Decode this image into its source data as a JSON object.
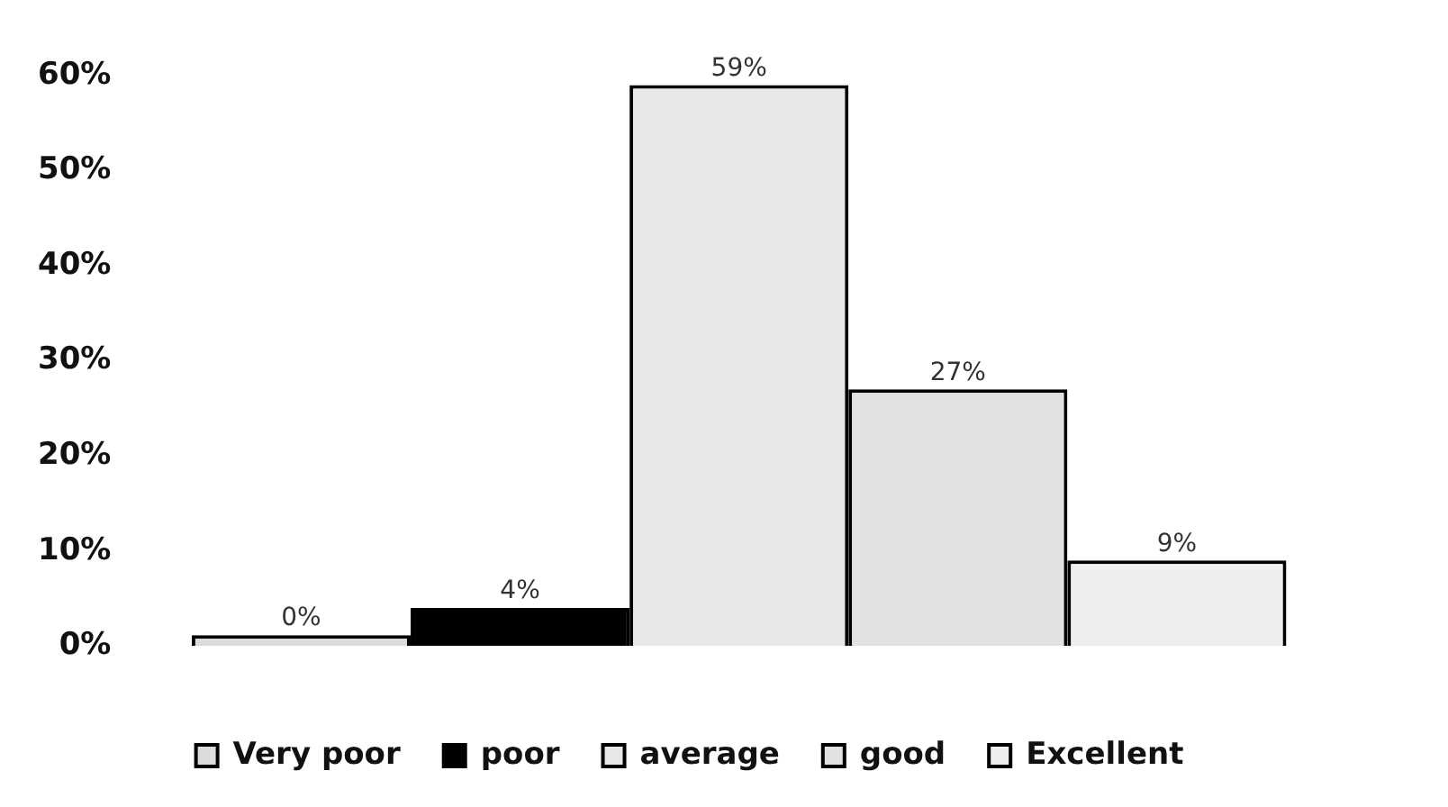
{
  "chart_data": {
    "type": "bar",
    "categories": [
      null
    ],
    "series": [
      {
        "name": "Very poor",
        "color": "#dcdcdc",
        "values": [
          0
        ],
        "value_labels": [
          "0%"
        ]
      },
      {
        "name": "poor",
        "color": "#000000",
        "values": [
          4
        ],
        "value_labels": [
          "4%"
        ]
      },
      {
        "name": "average",
        "color": "#e8e8e8",
        "values": [
          59
        ],
        "value_labels": [
          "59%"
        ]
      },
      {
        "name": "good",
        "color": "#e2e2e2",
        "values": [
          27
        ],
        "value_labels": [
          "27%"
        ]
      },
      {
        "name": "Excellent",
        "color": "#eeeeee",
        "values": [
          9
        ],
        "value_labels": [
          "9%"
        ]
      }
    ],
    "ylim": [
      0,
      60
    ],
    "yticks": [
      {
        "value": 0,
        "label": "0%"
      },
      {
        "value": 10,
        "label": "10%"
      },
      {
        "value": 20,
        "label": "20%"
      },
      {
        "value": 30,
        "label": "30%"
      },
      {
        "value": 40,
        "label": "40%"
      },
      {
        "value": 50,
        "label": "50%"
      },
      {
        "value": 60,
        "label": "60%"
      }
    ],
    "grid": false,
    "legend": "bottom"
  }
}
